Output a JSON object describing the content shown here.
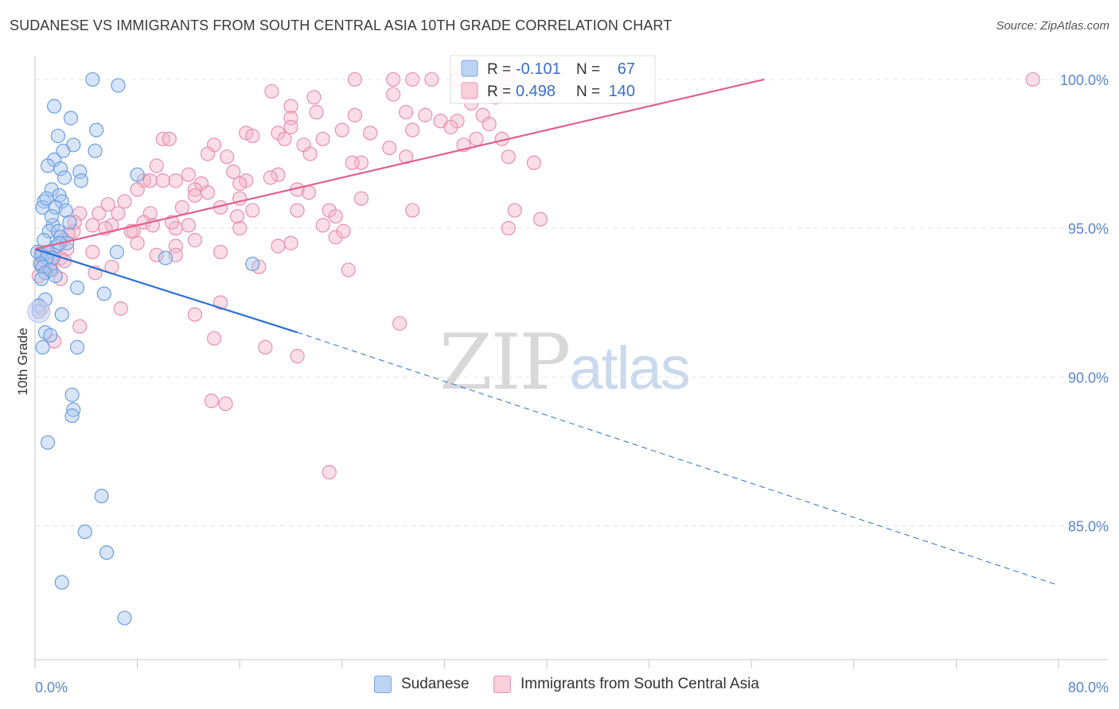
{
  "title": "SUDANESE VS IMMIGRANTS FROM SOUTH CENTRAL ASIA 10TH GRADE CORRELATION CHART",
  "source": "Source: ZipAtlas.com",
  "watermark": {
    "zip": "ZIP",
    "atlas": "atlas"
  },
  "colors": {
    "blue": "#6a9fe0",
    "pink": "#ee86a8",
    "blue_line": "#2a6fd6",
    "pink_line": "#e0608a"
  },
  "legend_top": {
    "rows": [
      {
        "r_label": "R =",
        "r_value": "-0.101",
        "n_label": "N =",
        "n_value": "67"
      },
      {
        "r_label": "R =",
        "r_value": "0.498",
        "n_label": "N =",
        "n_value": "140"
      }
    ]
  },
  "legend_bottom": [
    "Sudanese",
    "Immigrants from South Central Asia"
  ],
  "chart_data": {
    "type": "scatter",
    "title": "SUDANESE VS IMMIGRANTS FROM SOUTH CENTRAL ASIA 10TH GRADE CORRELATION CHART",
    "xlabel": "",
    "ylabel": "10th Grade",
    "xlim": [
      0,
      80
    ],
    "ylim": [
      80.5,
      100.8
    ],
    "x_tick_labels": [
      "0.0%",
      "80.0%"
    ],
    "y_ticks": [
      85,
      90,
      95,
      100
    ],
    "y_tick_labels": [
      "85.0%",
      "90.0%",
      "95.0%",
      "100.0%"
    ],
    "grid": true,
    "series": [
      {
        "name": "Sudanese",
        "color": "#6a9fe0",
        "r": -0.101,
        "n": 67,
        "trend": {
          "x0": 0,
          "y0": 94.3,
          "x1": 20.5,
          "y1": 91.5,
          "x_ext": 80,
          "y_ext": 83.0
        },
        "points": [
          [
            4.5,
            100
          ],
          [
            6.5,
            99.8
          ],
          [
            1.5,
            99.1
          ],
          [
            2.8,
            98.7
          ],
          [
            4.8,
            98.3
          ],
          [
            1.8,
            98.1
          ],
          [
            3.0,
            97.8
          ],
          [
            4.7,
            97.6
          ],
          [
            2.2,
            97.6
          ],
          [
            1.5,
            97.3
          ],
          [
            1.0,
            97.1
          ],
          [
            2.0,
            97.0
          ],
          [
            3.5,
            96.9
          ],
          [
            8.0,
            96.8
          ],
          [
            2.3,
            96.7
          ],
          [
            3.6,
            96.6
          ],
          [
            1.3,
            96.3
          ],
          [
            1.9,
            96.1
          ],
          [
            2.1,
            95.9
          ],
          [
            0.7,
            95.9
          ],
          [
            0.6,
            95.7
          ],
          [
            1.6,
            95.7
          ],
          [
            2.4,
            95.6
          ],
          [
            1.4,
            95.1
          ],
          [
            1.1,
            94.9
          ],
          [
            1.8,
            94.9
          ],
          [
            2.0,
            94.7
          ],
          [
            0.7,
            94.6
          ],
          [
            2.5,
            94.5
          ],
          [
            1.7,
            94.4
          ],
          [
            0.2,
            94.2
          ],
          [
            6.4,
            94.2
          ],
          [
            1.0,
            94.2
          ],
          [
            0.5,
            94.1
          ],
          [
            1.4,
            94.0
          ],
          [
            0.9,
            94.0
          ],
          [
            10.2,
            94.0
          ],
          [
            0.4,
            93.8
          ],
          [
            17.0,
            93.8
          ],
          [
            0.6,
            93.7
          ],
          [
            1.2,
            93.6
          ],
          [
            0.8,
            93.5
          ],
          [
            1.6,
            93.4
          ],
          [
            0.5,
            93.3
          ],
          [
            3.3,
            93.0
          ],
          [
            5.4,
            92.8
          ],
          [
            0.8,
            92.6
          ],
          [
            0.3,
            92.4
          ],
          [
            2.1,
            92.1
          ],
          [
            0.8,
            91.5
          ],
          [
            1.2,
            91.4
          ],
          [
            0.6,
            91.0
          ],
          [
            3.3,
            91.0
          ],
          [
            2.9,
            89.4
          ],
          [
            3.0,
            88.9
          ],
          [
            2.9,
            88.7
          ],
          [
            1.0,
            87.8
          ],
          [
            5.2,
            86.0
          ],
          [
            3.9,
            84.8
          ],
          [
            5.6,
            84.1
          ],
          [
            2.1,
            83.1
          ],
          [
            7.0,
            81.9
          ],
          [
            0.3,
            92.2
          ],
          [
            1.3,
            95.4
          ],
          [
            0.9,
            96.0
          ],
          [
            2.7,
            95.2
          ],
          [
            1.9,
            94.5
          ]
        ]
      },
      {
        "name": "Immigrants from South Central Asia",
        "color": "#ee86a8",
        "r": 0.498,
        "n": 140,
        "trend": {
          "x0": 0,
          "y0": 94.3,
          "x1": 57,
          "y1": 100.0
        },
        "points": [
          [
            25,
            100
          ],
          [
            28,
            100
          ],
          [
            29.5,
            100
          ],
          [
            31,
            100
          ],
          [
            33,
            100
          ],
          [
            37,
            100
          ],
          [
            78,
            100
          ],
          [
            18.5,
            99.6
          ],
          [
            28,
            99.5
          ],
          [
            21.8,
            99.4
          ],
          [
            36,
            99.4
          ],
          [
            20,
            99.1
          ],
          [
            22,
            98.9
          ],
          [
            29,
            98.9
          ],
          [
            30.5,
            98.8
          ],
          [
            25,
            98.8
          ],
          [
            35,
            98.8
          ],
          [
            20,
            98.7
          ],
          [
            33,
            98.6
          ],
          [
            35.5,
            98.5
          ],
          [
            20,
            98.4
          ],
          [
            29.5,
            98.3
          ],
          [
            24,
            98.3
          ],
          [
            19,
            98.2
          ],
          [
            16.5,
            98.2
          ],
          [
            17.0,
            98.1
          ],
          [
            19.5,
            98.0
          ],
          [
            22.5,
            98.0
          ],
          [
            10,
            98.0
          ],
          [
            10.5,
            98.0
          ],
          [
            34.5,
            98.0
          ],
          [
            36.5,
            98.0
          ],
          [
            21,
            97.8
          ],
          [
            14,
            97.8
          ],
          [
            33.5,
            97.8
          ],
          [
            21.5,
            97.5
          ],
          [
            13.5,
            97.5
          ],
          [
            15,
            97.4
          ],
          [
            37,
            97.4
          ],
          [
            29,
            97.4
          ],
          [
            25.5,
            97.2
          ],
          [
            24.8,
            97.2
          ],
          [
            9.5,
            97.1
          ],
          [
            39,
            97.2
          ],
          [
            15.5,
            96.9
          ],
          [
            19,
            96.8
          ],
          [
            12,
            96.8
          ],
          [
            8.5,
            96.6
          ],
          [
            9.0,
            96.6
          ],
          [
            10,
            96.6
          ],
          [
            11,
            96.6
          ],
          [
            16.5,
            96.6
          ],
          [
            16,
            96.5
          ],
          [
            13,
            96.5
          ],
          [
            8,
            96.3
          ],
          [
            12.5,
            96.3
          ],
          [
            20.5,
            96.3
          ],
          [
            13.5,
            96.2
          ],
          [
            12.5,
            96.1
          ],
          [
            16,
            96.0
          ],
          [
            25.5,
            96.0
          ],
          [
            7,
            95.9
          ],
          [
            11.5,
            95.7
          ],
          [
            14.5,
            95.7
          ],
          [
            17,
            95.6
          ],
          [
            20.5,
            95.6
          ],
          [
            23,
            95.6
          ],
          [
            29.5,
            95.6
          ],
          [
            37.5,
            95.6
          ],
          [
            3.5,
            95.5
          ],
          [
            5,
            95.5
          ],
          [
            6.5,
            95.5
          ],
          [
            9,
            95.5
          ],
          [
            23.5,
            95.4
          ],
          [
            39.5,
            95.3
          ],
          [
            8.5,
            95.2
          ],
          [
            4.5,
            95.1
          ],
          [
            6,
            95.1
          ],
          [
            22.5,
            95.1
          ],
          [
            12,
            95.1
          ],
          [
            5.5,
            95.0
          ],
          [
            11,
            95.0
          ],
          [
            16,
            95.0
          ],
          [
            3,
            94.9
          ],
          [
            7.7,
            94.9
          ],
          [
            37,
            95.0
          ],
          [
            2.6,
            94.8
          ],
          [
            23.5,
            94.7
          ],
          [
            12.5,
            94.6
          ],
          [
            8,
            94.5
          ],
          [
            20,
            94.5
          ],
          [
            11,
            94.4
          ],
          [
            19,
            94.4
          ],
          [
            2.5,
            94.3
          ],
          [
            0.5,
            94.2
          ],
          [
            4.5,
            94.2
          ],
          [
            14.5,
            94.2
          ],
          [
            1.5,
            94.1
          ],
          [
            9.5,
            94.1
          ],
          [
            11,
            94.1
          ],
          [
            2,
            94.0
          ],
          [
            0.8,
            93.9
          ],
          [
            2.3,
            93.9
          ],
          [
            0.5,
            93.8
          ],
          [
            6,
            93.7
          ],
          [
            1.2,
            93.7
          ],
          [
            17.5,
            93.7
          ],
          [
            24.5,
            93.6
          ],
          [
            4.7,
            93.5
          ],
          [
            0.3,
            93.4
          ],
          [
            2,
            93.3
          ],
          [
            14.5,
            92.5
          ],
          [
            6.7,
            92.3
          ],
          [
            12.5,
            92.1
          ],
          [
            3.5,
            91.7
          ],
          [
            28.5,
            91.8
          ],
          [
            14,
            91.3
          ],
          [
            1.5,
            91.2
          ],
          [
            18,
            91.0
          ],
          [
            20.5,
            90.7
          ],
          [
            13.8,
            89.2
          ],
          [
            14.9,
            89.1
          ],
          [
            23,
            86.8
          ],
          [
            0.5,
            92.3
          ],
          [
            1.3,
            93.6
          ],
          [
            3.1,
            95.2
          ],
          [
            5.7,
            95.8
          ],
          [
            10.7,
            95.2
          ],
          [
            18.4,
            96.7
          ],
          [
            27.7,
            97.7
          ],
          [
            26.2,
            98.2
          ],
          [
            31.7,
            98.6
          ],
          [
            32.5,
            98.4
          ],
          [
            34.1,
            99.2
          ],
          [
            7.5,
            94.9
          ],
          [
            9.2,
            95.1
          ],
          [
            15.8,
            95.4
          ],
          [
            21.4,
            96.2
          ],
          [
            24.1,
            94.9
          ],
          [
            2.2,
            94.6
          ]
        ]
      }
    ]
  }
}
